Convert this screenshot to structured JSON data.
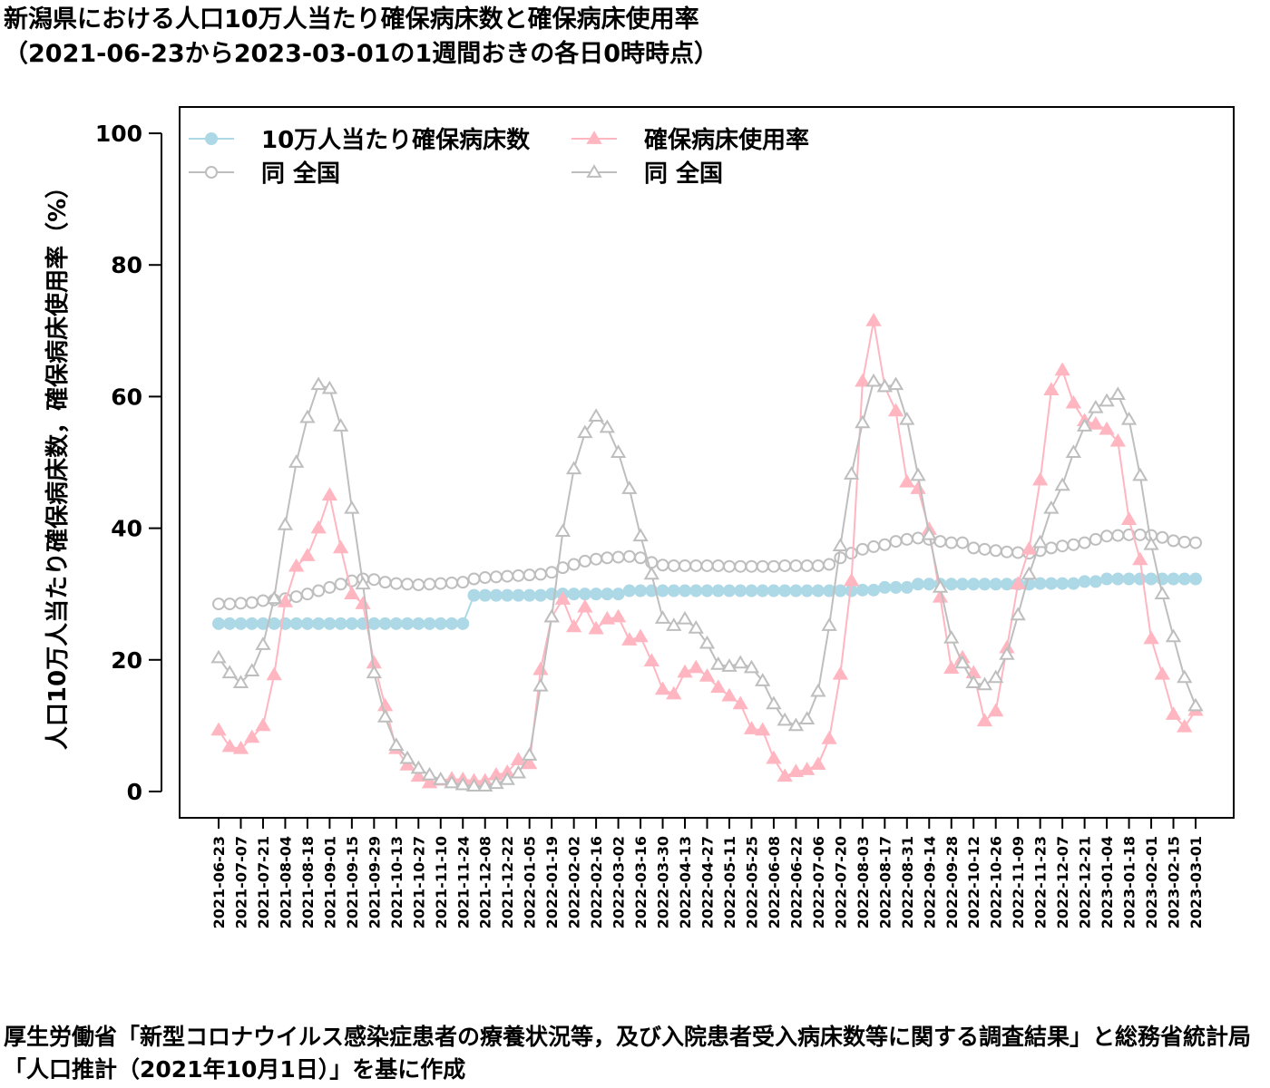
{
  "chart_data": {
    "type": "line",
    "title": "新潟県における人口10万人当たり確保病床数と確保病床使用率",
    "subtitle": "（2021-06-23から2023-03-01の1週間おきの各日0時時点）",
    "y_label": "人口10万人当たり確保病床数，確保病床使用率（%）",
    "source": "厚生労働省「新型コロナウイルス感染症患者の療養状況等，及び入院患者受入病床数等に関する調査結果」と総務省統計局「人口推計（2021年10月1日）」を基に作成",
    "categories": [
      "2021-06-23",
      null,
      "2021-07-07",
      null,
      "2021-07-21",
      null,
      "2021-08-04",
      null,
      "2021-08-18",
      null,
      "2021-09-01",
      null,
      "2021-09-15",
      null,
      "2021-09-29",
      null,
      "2021-10-13",
      null,
      "2021-10-27",
      null,
      "2021-11-10",
      null,
      "2021-11-24",
      null,
      "2021-12-08",
      null,
      "2021-12-22",
      null,
      "2022-01-05",
      null,
      "2022-01-19",
      null,
      "2022-02-02",
      null,
      "2022-02-16",
      null,
      "2022-03-02",
      null,
      "2022-03-16",
      null,
      "2022-03-30",
      null,
      "2022-04-13",
      null,
      "2022-04-27",
      null,
      "2022-05-11",
      null,
      "2022-05-25",
      null,
      "2022-06-08",
      null,
      "2022-06-22",
      null,
      "2022-07-06",
      null,
      "2022-07-20",
      null,
      "2022-08-03",
      null,
      "2022-08-17",
      null,
      "2022-08-31",
      null,
      "2022-09-14",
      null,
      "2022-09-28",
      null,
      "2022-10-12",
      null,
      "2022-10-26",
      null,
      "2022-11-09",
      null,
      "2022-11-23",
      null,
      "2022-12-07",
      null,
      "2022-12-21",
      null,
      "2023-01-04",
      null,
      "2023-01-18",
      null,
      "2023-02-01",
      null,
      "2023-02-15",
      null,
      "2023-03-01"
    ],
    "series": [
      {
        "name": "10万人当たり確保病床数",
        "color": "#add8e6",
        "marker": "circle",
        "filled": true,
        "values": [
          25.5,
          25.5,
          25.5,
          25.5,
          25.5,
          25.5,
          25.5,
          25.5,
          25.5,
          25.5,
          25.5,
          25.5,
          25.5,
          25.5,
          25.5,
          25.5,
          25.5,
          25.5,
          25.5,
          25.5,
          25.5,
          25.5,
          25.5,
          29.8,
          29.8,
          29.8,
          29.8,
          29.8,
          29.8,
          29.8,
          30.0,
          30.0,
          30.0,
          30.0,
          30.0,
          30.0,
          30.0,
          30.5,
          30.5,
          30.5,
          30.5,
          30.5,
          30.5,
          30.5,
          30.5,
          30.5,
          30.5,
          30.5,
          30.5,
          30.5,
          30.5,
          30.5,
          30.5,
          30.5,
          30.5,
          30.5,
          30.5,
          30.5,
          30.6,
          30.6,
          31.0,
          31.0,
          31.0,
          31.5,
          31.5,
          31.5,
          31.5,
          31.5,
          31.5,
          31.5,
          31.5,
          31.5,
          31.5,
          31.5,
          31.6,
          31.6,
          31.6,
          31.6,
          31.9,
          31.9,
          32.3,
          32.3,
          32.3,
          32.3,
          32.3,
          32.3,
          32.3,
          32.3,
          32.3
        ]
      },
      {
        "name": "同 全国",
        "color": "#bebebe",
        "marker": "circle",
        "filled": false,
        "values": [
          28.5,
          28.5,
          28.6,
          28.7,
          29.0,
          29.1,
          29.3,
          29.6,
          30.0,
          30.5,
          31.0,
          31.5,
          32.0,
          32.3,
          32.2,
          31.8,
          31.6,
          31.5,
          31.4,
          31.5,
          31.6,
          31.7,
          31.8,
          32.3,
          32.5,
          32.6,
          32.7,
          32.8,
          32.9,
          33.0,
          33.3,
          34.0,
          34.5,
          35.0,
          35.3,
          35.5,
          35.6,
          35.7,
          35.5,
          34.8,
          34.4,
          34.3,
          34.3,
          34.3,
          34.3,
          34.3,
          34.2,
          34.2,
          34.2,
          34.2,
          34.2,
          34.3,
          34.3,
          34.3,
          34.3,
          34.5,
          35.5,
          36.2,
          36.8,
          37.2,
          37.5,
          38.0,
          38.3,
          38.5,
          38.3,
          38.0,
          37.8,
          37.8,
          37.0,
          36.8,
          36.6,
          36.4,
          36.3,
          36.2,
          36.6,
          37.0,
          37.3,
          37.5,
          37.8,
          38.3,
          38.8,
          38.9,
          39.0,
          39.0,
          38.9,
          38.6,
          38.1,
          37.9,
          37.8
        ]
      },
      {
        "name": "確保病床使用率",
        "color": "#ffb6c1",
        "marker": "triangle",
        "filled": true,
        "values": [
          9.3,
          6.8,
          6.5,
          8.2,
          10,
          17.7,
          28.8,
          34.2,
          35.8,
          40,
          45,
          37,
          30,
          28.5,
          19.5,
          13,
          6.5,
          4,
          2.3,
          1.3,
          1.7,
          1.9,
          1.8,
          1.6,
          1.6,
          2.5,
          2.9,
          4.8,
          4.2,
          18.5,
          26.5,
          29.2,
          25,
          28,
          24.7,
          26.2,
          26.5,
          23,
          23.5,
          19.8,
          15.5,
          14.8,
          18.1,
          18.8,
          17.5,
          15.8,
          14.5,
          13.3,
          9.5,
          9.3,
          5,
          2.3,
          3,
          3.3,
          4.1,
          8,
          17.8,
          32,
          62.3,
          71.5,
          61.5,
          57.8,
          47,
          46,
          39.8,
          29.5,
          18.7,
          20.3,
          18,
          10.7,
          12.2,
          21.8,
          31.5,
          36.8,
          47.3,
          61,
          64,
          59,
          56.3,
          55.8,
          55,
          53.2,
          41.3,
          35.2,
          23.2,
          17.8,
          11.7,
          9.8,
          12.3
        ]
      },
      {
        "name": "同 全国",
        "color": "#bebebe",
        "marker": "triangle",
        "filled": false,
        "values": [
          20.3,
          18,
          16.5,
          18.3,
          22.3,
          29.3,
          40.5,
          50,
          56.8,
          61.8,
          61.2,
          55.5,
          43,
          31.5,
          18,
          11.3,
          7,
          5,
          3.5,
          2.5,
          1.8,
          1.3,
          1.0,
          0.8,
          0.8,
          1.2,
          1.8,
          2.8,
          5.5,
          16,
          26.5,
          39.5,
          49,
          54.5,
          57,
          55.3,
          51.5,
          46,
          38.8,
          33,
          26.3,
          25.2,
          26.2,
          24.8,
          22.5,
          19.3,
          19,
          19.5,
          18.8,
          16.8,
          13.3,
          10.8,
          10,
          11,
          15.2,
          25.2,
          37.3,
          48.2,
          56,
          62.3,
          61.5,
          61.8,
          56.5,
          48,
          39,
          31,
          23.3,
          19.5,
          16.5,
          16.2,
          17.3,
          20.8,
          26.8,
          33,
          37.8,
          43,
          46.5,
          51.5,
          55.5,
          58.3,
          59.3,
          60.3,
          56.5,
          48,
          37.5,
          30,
          23.5,
          17.3,
          13
        ]
      }
    ],
    "ylim": [
      -4,
      104
    ],
    "yticks": [
      0,
      20,
      40,
      60,
      80,
      100
    ],
    "legend": "top-left"
  }
}
